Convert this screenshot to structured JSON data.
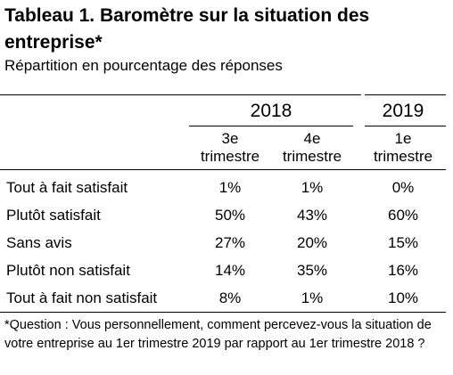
{
  "title": "Tableau 1. Baromètre sur la situation des entreprise*",
  "subtitle": "Répartition en pourcentage des réponses",
  "table": {
    "year_headers": [
      "2018",
      "2019"
    ],
    "column_headers": [
      {
        "line1": "3e",
        "line2": "trimestre"
      },
      {
        "line1": "4e",
        "line2": "trimestre"
      },
      {
        "line1": "1e",
        "line2": "trimestre"
      }
    ],
    "rows": [
      {
        "label": "Tout à fait satisfait",
        "values": [
          "1%",
          "1%",
          "0%"
        ]
      },
      {
        "label": "Plutôt satisfait",
        "values": [
          "50%",
          "43%",
          "60%"
        ]
      },
      {
        "label": "Sans avis",
        "values": [
          "27%",
          "20%",
          "15%"
        ]
      },
      {
        "label": "Plutôt non satisfait",
        "values": [
          "14%",
          "35%",
          "16%"
        ]
      },
      {
        "label": "Tout à fait non satisfait",
        "values": [
          "8%",
          "1%",
          "10%"
        ]
      }
    ]
  },
  "footnote": "*Question : Vous personnellement, comment percevez-vous la situation de votre entreprise au 1er trimestre 2019 par rapport au 1er trimestre 2018 ?"
}
